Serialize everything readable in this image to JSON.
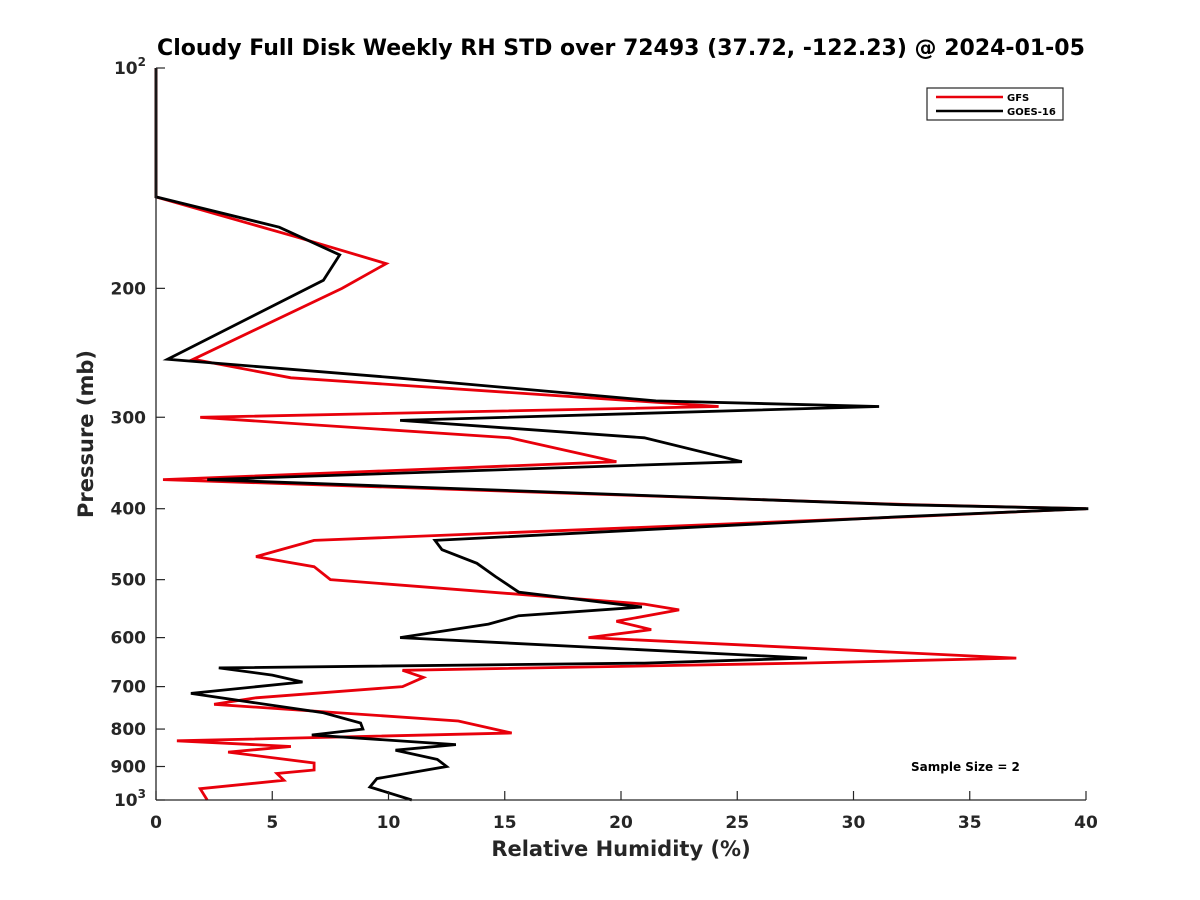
{
  "chart_data": {
    "type": "line",
    "title": "Cloudy Full Disk Weekly RH STD over 72493 (37.72, -122.23) @ 2024-01-05",
    "xlabel": "Relative Humidity (%)",
    "ylabel": "Pressure (mb)",
    "xlim": [
      0,
      40
    ],
    "ylim": [
      100,
      1000
    ],
    "yscale": "log",
    "y_reversed": true,
    "grid": false,
    "legend_position": "top-right",
    "x_ticks": [
      "0",
      "5",
      "10",
      "15",
      "20",
      "25",
      "30",
      "35",
      "40"
    ],
    "y_ticks": [
      {
        "value": 100,
        "base": "10",
        "exp": "2"
      },
      {
        "value": 200,
        "label": "200"
      },
      {
        "value": 300,
        "label": "300"
      },
      {
        "value": 400,
        "label": "400"
      },
      {
        "value": 500,
        "label": "500"
      },
      {
        "value": 600,
        "label": "600"
      },
      {
        "value": 700,
        "label": "700"
      },
      {
        "value": 800,
        "label": "800"
      },
      {
        "value": 900,
        "label": "900"
      },
      {
        "value": 1000,
        "base": "10",
        "exp": "3"
      }
    ],
    "annotation": "Sample Size = 2",
    "series": [
      {
        "name": "GFS",
        "color": "#e8000b",
        "points": [
          [
            0,
            100
          ],
          [
            0,
            150
          ],
          [
            6,
            170
          ],
          [
            9.9,
            185
          ],
          [
            8,
            200
          ],
          [
            1.6,
            250
          ],
          [
            5.8,
            265
          ],
          [
            24.2,
            290
          ],
          [
            1.9,
            300
          ],
          [
            15.2,
            320
          ],
          [
            19.8,
            345
          ],
          [
            0.3,
            365
          ],
          [
            32.5,
            395
          ],
          [
            40,
            400
          ],
          [
            32.5,
            410
          ],
          [
            6.8,
            442
          ],
          [
            4.3,
            465
          ],
          [
            6.8,
            480
          ],
          [
            7.5,
            500
          ],
          [
            21,
            540
          ],
          [
            22.5,
            550
          ],
          [
            19.8,
            570
          ],
          [
            21.3,
            585
          ],
          [
            18.6,
            600
          ],
          [
            37,
            640
          ],
          [
            27.8,
            650
          ],
          [
            10.6,
            665
          ],
          [
            11.5,
            680
          ],
          [
            10.6,
            700
          ],
          [
            4.3,
            725
          ],
          [
            2.5,
            740
          ],
          [
            13,
            780
          ],
          [
            15.3,
            810
          ],
          [
            0.9,
            830
          ],
          [
            5.8,
            845
          ],
          [
            3.1,
            860
          ],
          [
            6.8,
            890
          ],
          [
            6.8,
            910
          ],
          [
            5.2,
            920
          ],
          [
            5.5,
            940
          ],
          [
            1.9,
            965
          ],
          [
            2.2,
            1000
          ]
        ]
      },
      {
        "name": "GOES-16",
        "color": "#000000",
        "points": [
          [
            0,
            100
          ],
          [
            0,
            150
          ],
          [
            5.3,
            165
          ],
          [
            7.9,
            180
          ],
          [
            7.2,
            195
          ],
          [
            0.5,
            250
          ],
          [
            10.3,
            265
          ],
          [
            21.5,
            285
          ],
          [
            31.1,
            290
          ],
          [
            10.5,
            303
          ],
          [
            21,
            320
          ],
          [
            25.2,
            345
          ],
          [
            2.2,
            365
          ],
          [
            32,
            395
          ],
          [
            40.1,
            400
          ],
          [
            32.1,
            410
          ],
          [
            12,
            442
          ],
          [
            12.3,
            455
          ],
          [
            13.8,
            475
          ],
          [
            14.6,
            495
          ],
          [
            15.6,
            520
          ],
          [
            20.9,
            545
          ],
          [
            15.6,
            560
          ],
          [
            14.3,
            575
          ],
          [
            10.5,
            600
          ],
          [
            28,
            640
          ],
          [
            21,
            650
          ],
          [
            2.7,
            660
          ],
          [
            5,
            675
          ],
          [
            6.3,
            690
          ],
          [
            1.5,
            715
          ],
          [
            7.2,
            760
          ],
          [
            8.8,
            785
          ],
          [
            8.9,
            800
          ],
          [
            6.7,
            815
          ],
          [
            12.9,
            840
          ],
          [
            10.3,
            855
          ],
          [
            12.1,
            880
          ],
          [
            12.5,
            900
          ],
          [
            9.5,
            935
          ],
          [
            9.2,
            960
          ],
          [
            11,
            1000
          ]
        ]
      }
    ]
  }
}
